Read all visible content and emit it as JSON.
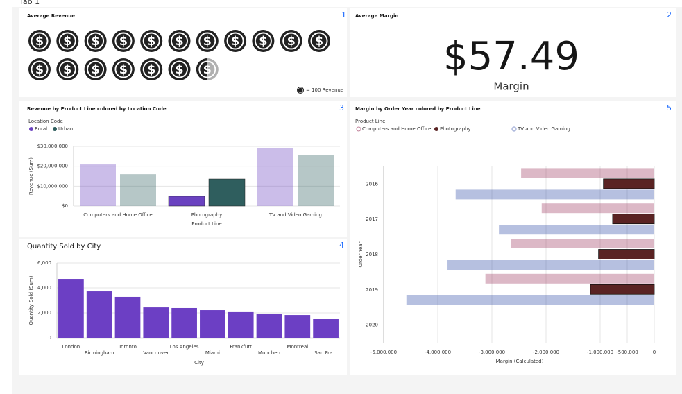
{
  "tab": "Tab 1",
  "revenue_widget": {
    "number": "1",
    "title": "Average Revenue",
    "value": 1750,
    "unit": 100,
    "icon_symbol": "$",
    "legend": "= 100 Revenue"
  },
  "margin_widget": {
    "number": "2",
    "title": "Average Margin",
    "value": "$57.49",
    "label": "Margin"
  },
  "chart_data": [
    {
      "type": "bar",
      "number": "3",
      "title": "Revenue by Product Line colored by Location Code",
      "legend_title": "Location Code",
      "categories": [
        "Computers and Home Office",
        "Photography",
        "TV and Video Gaming"
      ],
      "series": [
        {
          "name": "Rural",
          "color": "#6a42c0",
          "values": [
            20900000,
            4900000,
            29000000
          ]
        },
        {
          "name": "Urban",
          "color": "#2f5e5e",
          "values": [
            16000000,
            13600000,
            25800000
          ]
        }
      ],
      "highlight": "Photography",
      "xlabel": "Product Line",
      "ylabel": "Revenue (Sum)",
      "ylim": [
        0,
        30000000
      ],
      "yticks": [
        {
          "value": 0,
          "label": "$0"
        },
        {
          "value": 10000000,
          "label": "$10,000,000"
        },
        {
          "value": 20000000,
          "label": "$20,000,000"
        },
        {
          "value": 30000000,
          "label": "$30,000,000"
        }
      ],
      "grid": true
    },
    {
      "type": "bar",
      "number": "4",
      "title": "Quantity Sold by City",
      "categories": [
        "London",
        "Birmingham",
        "Toronto",
        "Vancouver",
        "Los Angeles",
        "Miami",
        "Frankfurt",
        "Munchen",
        "Montreal",
        "San Fra..."
      ],
      "values": [
        4720,
        3720,
        3280,
        2440,
        2390,
        2220,
        2060,
        1890,
        1830,
        1500
      ],
      "color": "#6c3fc4",
      "xlabel": "City",
      "ylabel": "Quantity Sold (Sum)",
      "ylim": [
        0,
        6000
      ],
      "yticks": [
        0,
        {
          "value": 2000,
          "label": "2,000"
        },
        {
          "value": 4000,
          "label": "4,000"
        },
        {
          "value": 6000,
          "label": "6,000"
        }
      ],
      "grid": true
    },
    {
      "type": "hbar",
      "number": "5",
      "title": "Margin by Order Year colored by Product Line",
      "legend_title": "Product Line",
      "categories": [
        "2016",
        "2017",
        "2018",
        "2019",
        "2020"
      ],
      "series": [
        {
          "name": "Computers and Home Office",
          "color": "#9a335b",
          "values": [
            -2460000,
            -2080000,
            -2650000,
            -3120000,
            null
          ]
        },
        {
          "name": "Photography",
          "color": "#5a2323",
          "values": [
            -940000,
            -770000,
            -1030000,
            -1180000,
            null
          ]
        },
        {
          "name": "TV and Video Gaming",
          "color": "#2e4aa6",
          "values": [
            -3670000,
            -2870000,
            -3820000,
            -4580000,
            null
          ]
        }
      ],
      "highlight": "Photography",
      "xlabel": "Margin (Calculated)",
      "ylabel": "Order Year",
      "xlim": [
        -5000000,
        0
      ],
      "xticks": [
        {
          "value": -5000000,
          "label": "-5,000,000"
        },
        {
          "value": -4000000,
          "label": "-4,000,000"
        },
        {
          "value": -3000000,
          "label": "-3,000,000"
        },
        {
          "value": -2000000,
          "label": "-2,000,000"
        },
        {
          "value": -1000000,
          "label": "-1,000,000"
        },
        {
          "value": -500000,
          "label": "-500,000"
        },
        0
      ],
      "grid": true
    }
  ]
}
